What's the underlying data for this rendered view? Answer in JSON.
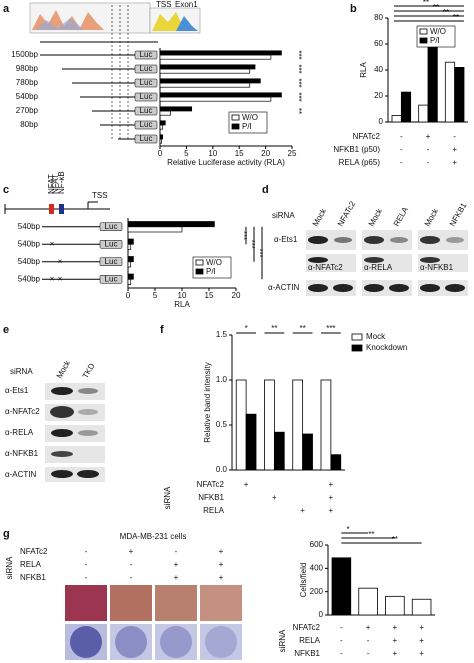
{
  "figure": {
    "panel_labels": [
      "a",
      "b",
      "c",
      "d",
      "e",
      "f",
      "g"
    ],
    "a": {
      "tss": "TSS",
      "exon": "Exon1",
      "luc": "Luc"
    },
    "c": {
      "nfat1": "NFAT",
      "nfat2": "NFAT",
      "nfkb": "NF-κB",
      "tss": "TSS"
    },
    "d": {
      "sirna": "siRNA",
      "lanes": [
        "Mock",
        "NFATc2",
        "Mock",
        "RELA",
        "Mock",
        "NFKB1"
      ],
      "ets1": "α-Ets1",
      "blots": [
        "α-NFATc2",
        "α-RELA",
        "α-NFKB1"
      ],
      "actin": "α-ACTIN"
    },
    "e": {
      "sirna": "siRNA",
      "lanes": [
        "Mock",
        "TKD"
      ],
      "rows": [
        "α-Ets1",
        "α-NFATc2",
        "α-RELA",
        "α-NFKB1",
        "α-ACTIN"
      ]
    },
    "g": {
      "title": "MDA-MB-231 cells",
      "sirna": "siRNA",
      "rows": [
        {
          "name": "NFATc2",
          "marks": [
            "-",
            "+",
            "-",
            "+"
          ]
        },
        {
          "name": "RELA",
          "marks": [
            "-",
            "-",
            "+",
            "+"
          ]
        },
        {
          "name": "NFKB1",
          "marks": [
            "-",
            "-",
            "+",
            "+"
          ]
        }
      ]
    }
  },
  "chart_data": [
    {
      "type": "barh",
      "categories": [
        "1500bp",
        "980bp",
        "780bp",
        "540bp",
        "270bp",
        "80bp",
        null
      ],
      "series": [
        {
          "name": "W/O",
          "color": "#ffffff",
          "values": [
            21,
            17,
            17,
            21,
            2,
            0.5,
            0.3
          ]
        },
        {
          "name": "P/I",
          "color": "#000000",
          "values": [
            23,
            18,
            19,
            23,
            6,
            1,
            0.5
          ]
        }
      ],
      "xlim": [
        0,
        25
      ],
      "xticks": [
        0,
        5,
        10,
        15,
        20,
        25
      ],
      "xlabel": "Relative Luciferase activity (RLA)",
      "significance": [
        "***",
        "***",
        "***",
        "***",
        "**"
      ]
    },
    {
      "type": "bar",
      "ylabel": "RLA",
      "series": [
        {
          "name": "W/O",
          "color": "#ffffff",
          "values": [
            5,
            13,
            46
          ]
        },
        {
          "name": "P/I",
          "color": "#000000",
          "values": [
            23,
            65,
            42
          ]
        }
      ],
      "ylim": [
        0,
        80
      ],
      "yticks": [
        0,
        20,
        40,
        60,
        80
      ],
      "conditions": [
        {
          "name": "NFATc2",
          "marks": [
            "-",
            "+",
            "-"
          ]
        },
        {
          "name": "NFKB1 (p50)",
          "marks": [
            "-",
            "-",
            "+"
          ]
        },
        {
          "name": "RELA (p65)",
          "marks": [
            "-",
            "-",
            "+"
          ]
        }
      ],
      "significance": [
        "**",
        "**",
        "**",
        "**"
      ]
    },
    {
      "type": "barh",
      "categories": [
        "540bp",
        "540bp",
        "540bp",
        "540bp"
      ],
      "series": [
        {
          "name": "W/O",
          "color": "#ffffff",
          "values": [
            10,
            0.5,
            0.5,
            0.5
          ]
        },
        {
          "name": "P/I",
          "color": "#000000",
          "values": [
            16,
            1,
            1,
            1
          ]
        }
      ],
      "xlim": [
        0,
        20
      ],
      "xticks": [
        0,
        5,
        10,
        15,
        20
      ],
      "xlabel": "RLA",
      "significance": [
        "***",
        "***",
        "***"
      ]
    },
    {
      "type": "bar",
      "ylabel": "Relative band intensity",
      "series": [
        {
          "name": "Mock",
          "color": "#ffffff",
          "values": [
            1,
            1,
            1,
            1
          ]
        },
        {
          "name": "Knockdown",
          "color": "#000000",
          "values": [
            0.62,
            0.42,
            0.4,
            0.17
          ]
        }
      ],
      "ylim": [
        0,
        1.5
      ],
      "yticks": [
        {
          "value": 0,
          "label": "0.0"
        },
        {
          "value": 0.5,
          "label": "0.5"
        },
        {
          "value": 1,
          "label": "1.0"
        },
        {
          "value": 1.5,
          "label": "1.5"
        }
      ],
      "sirna": "siRNA",
      "conditions": [
        {
          "name": "NFATc2",
          "marks": [
            "+",
            null,
            null,
            "+"
          ]
        },
        {
          "name": "NFKB1",
          "marks": [
            null,
            "+",
            null,
            "+"
          ]
        },
        {
          "name": "RELA",
          "marks": [
            null,
            null,
            "+",
            "+"
          ]
        }
      ],
      "significance": [
        "*",
        "**",
        "**",
        "***"
      ]
    },
    {
      "type": "bar",
      "ylabel": "Cells/field",
      "values": [
        490,
        230,
        160,
        135
      ],
      "colors": [
        "#000000",
        "#ffffff",
        "#ffffff",
        "#ffffff"
      ],
      "ylim": [
        0,
        600
      ],
      "yticks": [
        0,
        200,
        400,
        600
      ],
      "sirna": "siRNA",
      "conditions": [
        {
          "name": "NFATc2",
          "marks": [
            "-",
            "+",
            "+",
            "+"
          ]
        },
        {
          "name": "RELA",
          "marks": [
            "-",
            "-",
            "+",
            "+"
          ]
        },
        {
          "name": "NFKB1",
          "marks": [
            "-",
            "-",
            "+",
            "+"
          ]
        }
      ],
      "significance": [
        "*",
        "**",
        "**"
      ]
    }
  ]
}
